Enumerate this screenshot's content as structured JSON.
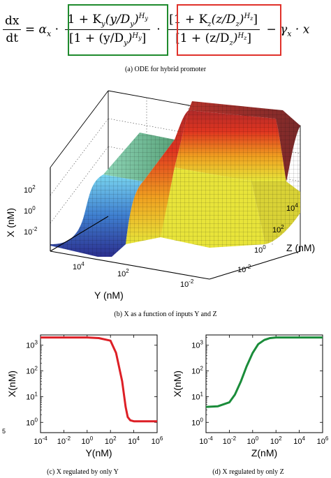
{
  "equation": {
    "lhs_num": "dx",
    "lhs_den": "dt",
    "eq_sign": "=",
    "alpha": "α",
    "alpha_sub": "x",
    "dot": "·",
    "fy_num": "1 + K",
    "fy_num_sub": "y",
    "fy_num_arg": "(y/D",
    "fy_num_arg_sub": "y",
    "fy_num_close": ")",
    "fy_num_exp": "H",
    "fy_num_exp_sub": "y",
    "fy_den": "[1 + (y/D",
    "fy_den_sub": "y",
    "fy_den_close": ")",
    "fy_den_exp": "H",
    "fy_den_exp_sub": "y",
    "fy_den_end": "]",
    "fz_num": "[1 + K",
    "fz_num_sub": "z",
    "fz_num_arg": "(z/D",
    "fz_num_arg_sub": "z",
    "fz_num_close": ")",
    "fz_num_exp": "H",
    "fz_num_exp_sub": "z",
    "fz_num_end": "]",
    "fz_den": "[1 + (z/D",
    "fz_den_sub": "z",
    "fz_den_close": ")",
    "fz_den_exp": "H",
    "fz_den_exp_sub": "z",
    "fz_den_end": "]",
    "minus": "−",
    "gamma": "γ",
    "gamma_sub": "x",
    "tail": "· x",
    "box_y_color": "#1f8a2d",
    "box_z_color": "#e0312a"
  },
  "captions": {
    "a": "(a) ODE for hybrid promoter",
    "b": "(b) X as a function of inputs Y and Z",
    "c": "(c) X regulated by only Y",
    "d": "(d) X regulated by only Z"
  },
  "surface": {
    "x_axis_label": "X (nM)",
    "y_axis_label": "Y (nM)",
    "z_axis_label": "Z (nM)",
    "x_ticks": [
      "10^2",
      "10^0",
      "10^-2"
    ],
    "y_ticks": [
      "10^4",
      "10^2",
      "10^-2"
    ],
    "z_ticks": [
      "10^4",
      "10^2",
      "10^0",
      "10^-2"
    ],
    "colors": {
      "low": "#3a3aa0",
      "mid": "#7fd1ff",
      "green": "#6fb38a",
      "yellow": "#f0e030",
      "red": "#e03020",
      "top": "#a03030"
    }
  },
  "stray_mark": "5",
  "chart_data": [
    {
      "type": "line",
      "xlabel": "Y(nM)",
      "ylabel": "X(nM)",
      "x_scale": "log",
      "y_scale": "log",
      "xlim_exp": [
        -4,
        6
      ],
      "ylim_exp": [
        -0.4,
        3.4
      ],
      "x_tick_labels": [
        "10^-4",
        "10^-2",
        "10^0",
        "10^2",
        "10^4",
        "10^6"
      ],
      "y_tick_labels": [
        "10^0",
        "10^1",
        "10^2",
        "10^3"
      ],
      "color": "#dd1f26",
      "x": [
        0.0001,
        0.01,
        1,
        10,
        100,
        300,
        1000,
        2000,
        3000,
        5000,
        10000,
        100000,
        1000000
      ],
      "y": [
        2000,
        2000,
        2000,
        1900,
        1500,
        500,
        40,
        4,
        1.6,
        1.2,
        1.1,
        1.1,
        1.1
      ]
    },
    {
      "type": "line",
      "xlabel": "Z(nM)",
      "ylabel": "X(nM)",
      "x_scale": "log",
      "y_scale": "log",
      "xlim_exp": [
        -4,
        6
      ],
      "ylim_exp": [
        -0.4,
        3.4
      ],
      "x_tick_labels": [
        "10^-4",
        "10^-2",
        "10^0",
        "10^2",
        "10^4",
        "10^6"
      ],
      "y_tick_labels": [
        "10^0",
        "10^1",
        "10^2",
        "10^3"
      ],
      "color": "#1a8c3a",
      "x": [
        0.0001,
        0.001,
        0.01,
        0.03,
        0.1,
        0.3,
        1,
        3,
        10,
        30,
        100,
        1000,
        10000,
        1000000
      ],
      "y": [
        4,
        4.2,
        6,
        12,
        40,
        150,
        500,
        1100,
        1600,
        1900,
        2000,
        2000,
        2000,
        2000
      ]
    }
  ]
}
